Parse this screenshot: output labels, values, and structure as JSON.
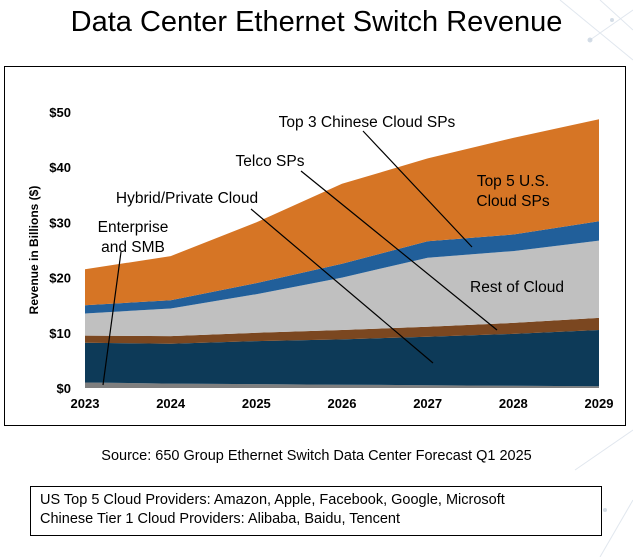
{
  "title": "Data Center Ethernet Switch Revenue",
  "source": "Source: 650 Group Ethernet Switch Data Center Forecast Q1 2025",
  "notes": [
    "US Top 5 Cloud Providers: Amazon, Apple, Facebook, Google, Microsoft",
    "Chinese Tier 1 Cloud Providers: Alibaba, Baidu, Tencent"
  ],
  "colors": {
    "enterprise": "#7f7f7f",
    "hybrid": "#0d3a58",
    "telco": "#7b4720",
    "rest": "#c0c0c0",
    "chinese": "#215f9a",
    "us": "#d67525"
  },
  "chart_data": {
    "type": "area",
    "stacked": true,
    "title": "Data Center Ethernet Switch Revenue",
    "xlabel": "",
    "ylabel": "Revenue in Billions ($)",
    "x": [
      "2023",
      "2024",
      "2025",
      "2026",
      "2027",
      "2028",
      "2029"
    ],
    "ylim": [
      0,
      50
    ],
    "yticks": [
      "$0",
      "$10",
      "$20",
      "$30",
      "$40",
      "$50"
    ],
    "ytick_values": [
      0,
      10,
      20,
      30,
      40,
      50
    ],
    "grid": false,
    "series": [
      {
        "name": "Enterprise and SMB",
        "key": "enterprise",
        "values": [
          1.0,
          0.8,
          0.7,
          0.6,
          0.5,
          0.4,
          0.3
        ]
      },
      {
        "name": "Hybrid/Private Cloud",
        "key": "hybrid",
        "values": [
          7.2,
          7.2,
          7.8,
          8.2,
          8.8,
          9.4,
          10.2
        ]
      },
      {
        "name": "Telco SPs",
        "key": "telco",
        "values": [
          1.3,
          1.4,
          1.5,
          1.7,
          1.8,
          2.0,
          2.2
        ]
      },
      {
        "name": "Rest of Cloud",
        "key": "rest",
        "values": [
          4.0,
          5.0,
          7.0,
          9.5,
          12.5,
          13.0,
          14.0
        ]
      },
      {
        "name": "Top 3 Chinese Cloud SPs",
        "key": "chinese",
        "values": [
          1.5,
          1.5,
          2.0,
          2.5,
          3.0,
          3.0,
          3.5
        ]
      },
      {
        "name": "Top 5 U.S. Cloud SPs",
        "key": "us",
        "values": [
          6.5,
          8.0,
          11.0,
          14.5,
          15.0,
          17.5,
          18.5
        ]
      }
    ],
    "annotations": [
      {
        "series": "enterprise",
        "lines": [
          "Enterprise",
          "and SMB"
        ]
      },
      {
        "series": "hybrid",
        "lines": [
          "Hybrid/Private Cloud"
        ]
      },
      {
        "series": "telco",
        "lines": [
          "Telco SPs"
        ]
      },
      {
        "series": "chinese",
        "lines": [
          "Top 3 Chinese Cloud SPs"
        ]
      },
      {
        "series": "us",
        "lines": [
          "Top 5 U.S.",
          "Cloud SPs"
        ]
      },
      {
        "series": "rest",
        "lines": [
          "Rest of Cloud"
        ]
      }
    ]
  }
}
